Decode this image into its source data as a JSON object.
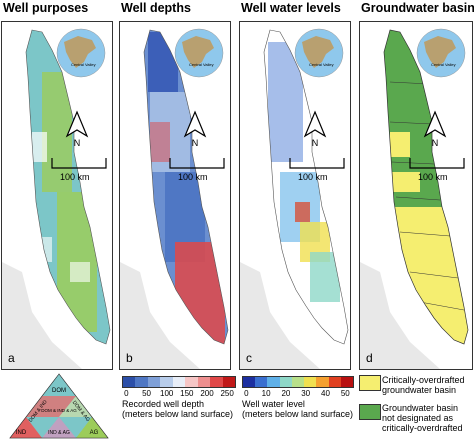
{
  "panels": [
    {
      "title": "Well purposes",
      "label": "a"
    },
    {
      "title": "Well depths",
      "label": "b"
    },
    {
      "title": "Well water levels",
      "label": "c"
    },
    {
      "title": "Groundwater basins",
      "label": "d"
    }
  ],
  "globe_label": "Central Valley",
  "north_label": "N",
  "scale_label": "100 km",
  "ternary": {
    "vertices": [
      "DOM",
      "IND",
      "AG"
    ],
    "edges": [
      "DOM & IND",
      "DOM & AG",
      "IND & AG"
    ],
    "center": "DOM & IND & AG"
  },
  "depth_legend": {
    "ticks": [
      "0",
      "50",
      "100",
      "150",
      "200",
      "250"
    ],
    "caption_line1": "Recorded well depth",
    "caption_line2": "(meters below land surface)",
    "colors": [
      "#2c4fa8",
      "#4f77c4",
      "#7fa0d8",
      "#b8cdeb",
      "#e8eef8",
      "#f6c6c6",
      "#ee8f8f",
      "#e04848",
      "#c01818"
    ]
  },
  "level_legend": {
    "ticks": [
      "0",
      "10",
      "20",
      "30",
      "40",
      "50"
    ],
    "caption_line1": "Well water level",
    "caption_line2": "(meters below land surface)",
    "colors": [
      "#1c2fa0",
      "#3a6fd0",
      "#5fb0e8",
      "#8fd8c8",
      "#b8e08a",
      "#f0e050",
      "#f5a030",
      "#e04020",
      "#b81010"
    ]
  },
  "basin_legend": [
    {
      "label_line1": "Critically-overdrafted",
      "label_line2": "groundwater basin",
      "color": "#f5ee70"
    },
    {
      "label_line1": "Groundwater basin",
      "label_line2": "not designated as",
      "label_line3": "critically-overdrafted",
      "color": "#5aa84e"
    }
  ],
  "colors": {
    "purposes_base": "#7cc6c8",
    "purposes_green": "#9ccc5a",
    "depth_base": "#6b8fd0",
    "depth_red": "#d83030",
    "levels_blue": "#3a6fd0",
    "basin_green": "#5aa84e",
    "basin_yellow": "#f5ee70"
  }
}
